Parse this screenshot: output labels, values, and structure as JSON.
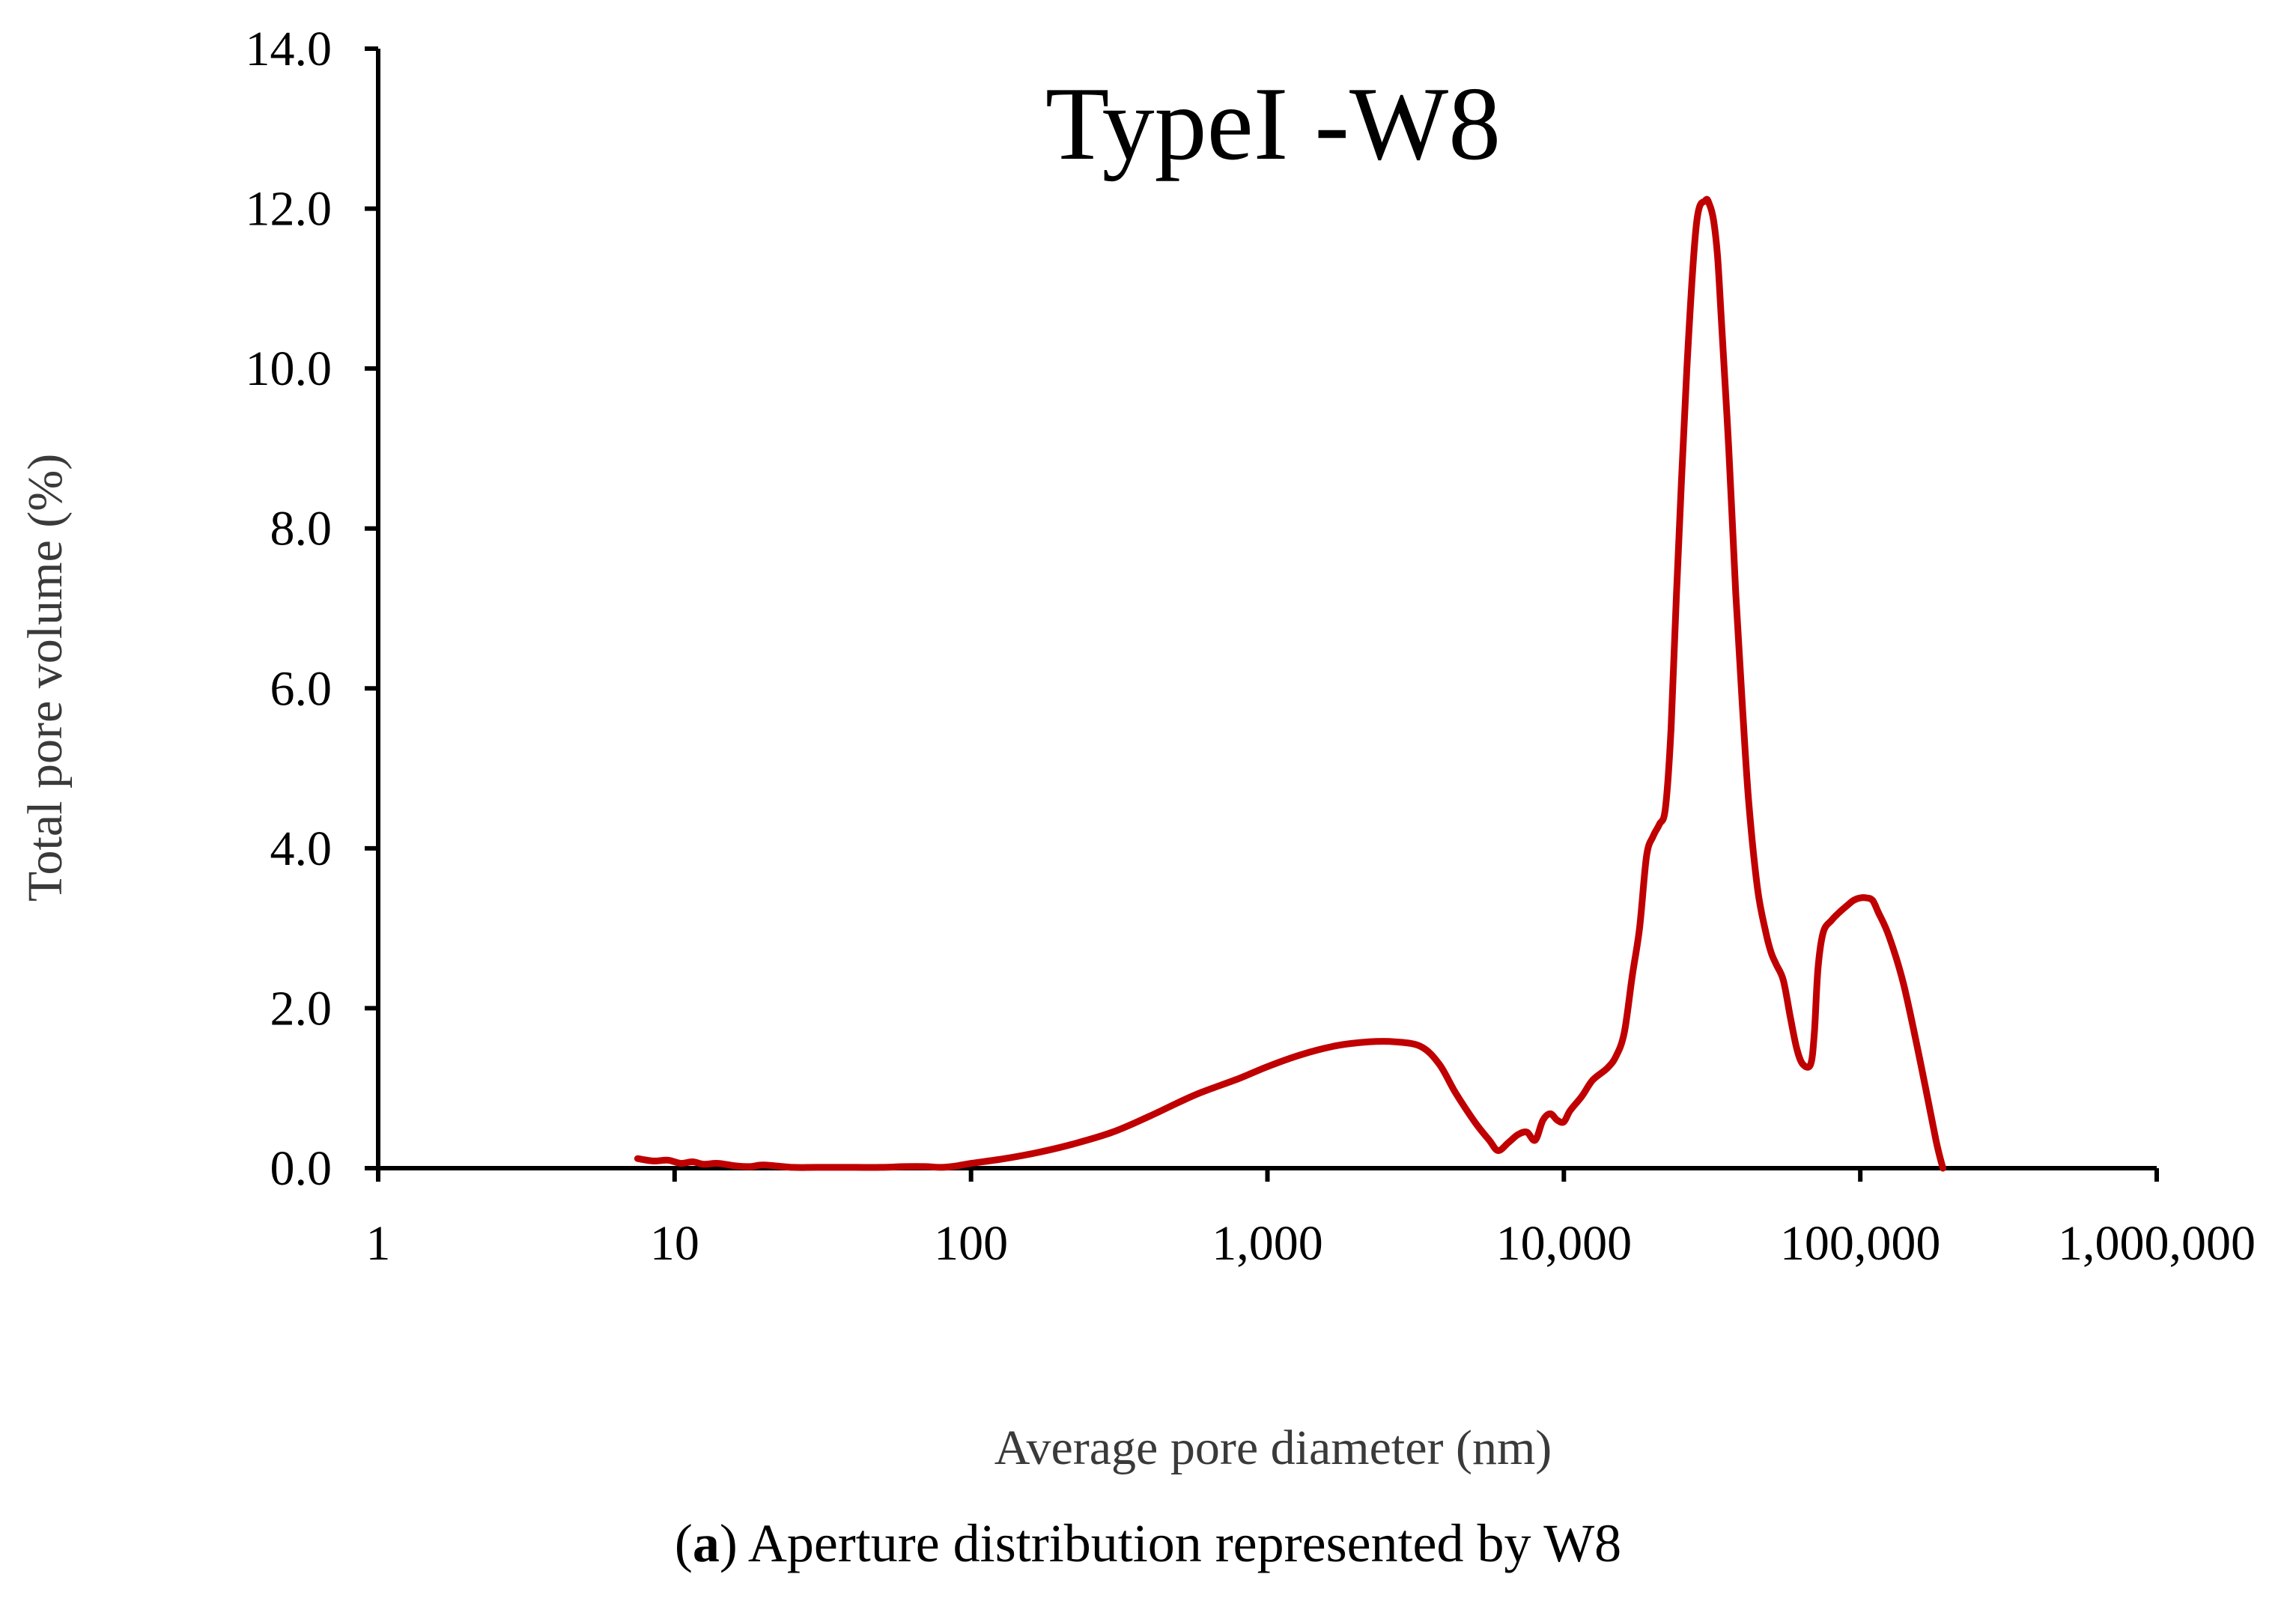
{
  "chart_data": {
    "type": "line",
    "title": "TypeI -W8",
    "xlabel": "Average pore diameter (nm)",
    "ylabel": "Total pore volume (%)",
    "x_scale": "log",
    "xlim": [
      1,
      1000000
    ],
    "ylim": [
      0,
      14
    ],
    "x_ticks": [
      1,
      10,
      100,
      1000,
      10000,
      100000,
      1000000
    ],
    "x_tick_labels": [
      "1",
      "10",
      "100",
      "1,000",
      "10,000",
      "100,000",
      "1,000,000"
    ],
    "y_ticks": [
      0,
      2,
      4,
      6,
      8,
      10,
      12,
      14
    ],
    "y_tick_labels": [
      "0.0",
      "2.0",
      "4.0",
      "6.0",
      "8.0",
      "10.0",
      "12.0",
      "14.0"
    ],
    "grid": false,
    "legend": "none",
    "series": [
      {
        "name": "W8",
        "color": "#c00000",
        "x": [
          7.5,
          8.5,
          9.5,
          10.5,
          11.5,
          12.5,
          14,
          16,
          18,
          20,
          25,
          30,
          40,
          50,
          60,
          70,
          80,
          90,
          100,
          130,
          170,
          220,
          300,
          400,
          500,
          600,
          800,
          1000,
          1300,
          1700,
          2200,
          2700,
          3300,
          3800,
          4300,
          5000,
          5600,
          6000,
          6500,
          7000,
          7500,
          8000,
          8500,
          9000,
          9500,
          10000,
          10500,
          11500,
          12500,
          14000,
          15000,
          16000,
          17000,
          18000,
          19000,
          20000,
          21000,
          22000,
          23000,
          24000,
          26000,
          28000,
          30000,
          31000,
          32000,
          33000,
          34000,
          36000,
          38000,
          40000,
          42000,
          45000,
          48000,
          50000,
          52000,
          55000,
          58000,
          61000,
          64000,
          68000,
          70000,
          72000,
          75000,
          80000,
          85000,
          90000,
          95000,
          100000,
          105000,
          110000,
          115000,
          125000,
          140000,
          160000,
          180000,
          190000
        ],
        "values": [
          0.12,
          0.09,
          0.1,
          0.06,
          0.08,
          0.05,
          0.06,
          0.03,
          0.02,
          0.04,
          0.01,
          0.01,
          0.01,
          0.01,
          0.02,
          0.02,
          0.01,
          0.03,
          0.06,
          0.12,
          0.2,
          0.3,
          0.45,
          0.65,
          0.82,
          0.95,
          1.12,
          1.27,
          1.42,
          1.53,
          1.58,
          1.58,
          1.52,
          1.3,
          0.95,
          0.58,
          0.35,
          0.22,
          0.32,
          0.42,
          0.45,
          0.35,
          0.6,
          0.68,
          0.6,
          0.58,
          0.72,
          0.9,
          1.1,
          1.25,
          1.4,
          1.7,
          2.4,
          3.0,
          3.9,
          4.15,
          4.3,
          4.5,
          5.5,
          7.2,
          10.0,
          11.8,
          12.1,
          12.05,
          11.85,
          11.4,
          10.6,
          9.0,
          7.2,
          5.8,
          4.6,
          3.5,
          2.95,
          2.7,
          2.55,
          2.35,
          1.9,
          1.5,
          1.3,
          1.3,
          1.7,
          2.5,
          2.95,
          3.1,
          3.2,
          3.28,
          3.35,
          3.38,
          3.38,
          3.35,
          3.2,
          2.9,
          2.3,
          1.3,
          0.35,
          0.0
        ]
      }
    ]
  },
  "caption": {
    "prefix": "(",
    "letter": "a",
    "text": ") Aperture distribution represented by W8"
  }
}
